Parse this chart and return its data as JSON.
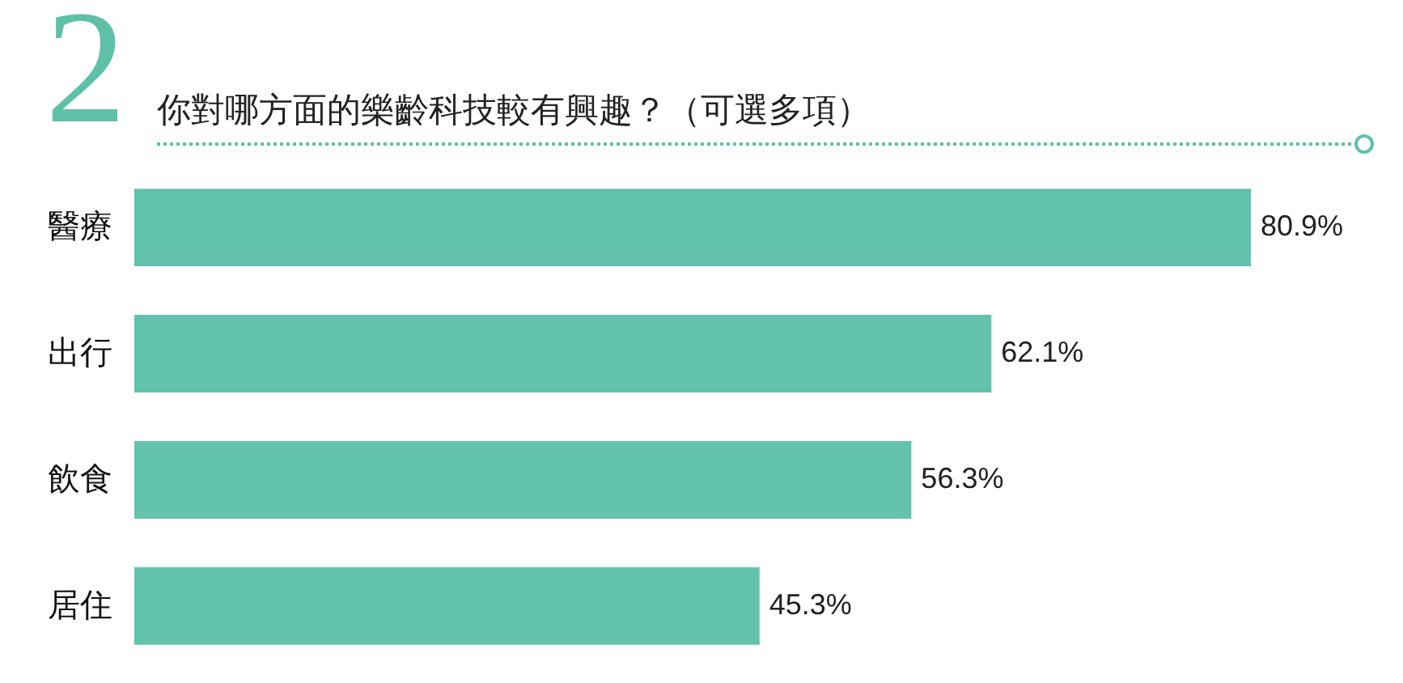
{
  "chart_data": {
    "type": "bar",
    "orientation": "horizontal",
    "title": "你對哪方面的樂齡科技較有興趣？（可選多項）",
    "annotations": [
      "2"
    ],
    "categories": [
      "醫療",
      "出行",
      "飲食",
      "居住"
    ],
    "values": [
      80.9,
      62.1,
      56.3,
      45.3
    ],
    "value_labels": [
      "80.9%",
      "62.1%",
      "56.3%",
      "45.3%"
    ],
    "color": "#63c2ab"
  }
}
